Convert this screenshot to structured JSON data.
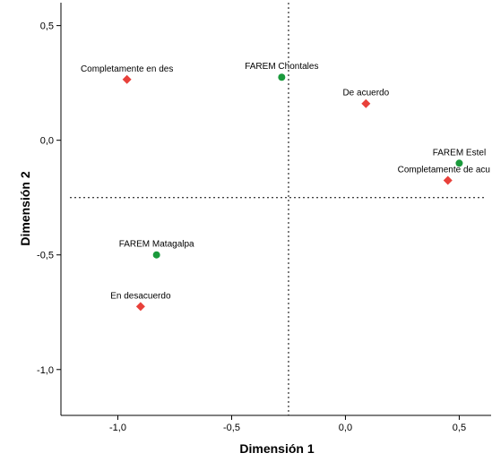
{
  "chart_data": {
    "type": "scatter",
    "xlabel": "Dimensión 1",
    "ylabel": "Dimensión 2",
    "xlim": [
      -1.25,
      0.64
    ],
    "ylim": [
      -1.2,
      0.6
    ],
    "xticks": [
      -1.0,
      -0.5,
      0.0,
      0.5
    ],
    "yticks": [
      -1.0,
      -0.5,
      0.0,
      0.5
    ],
    "xtick_labels": [
      "-1,0",
      "-0,5",
      "0,0",
      "0,5"
    ],
    "ytick_labels": [
      "-1,0",
      "-0,5",
      "0,0",
      "0,5"
    ],
    "reference_lines": {
      "x": -0.25,
      "y": -0.25,
      "style": "dotted"
    },
    "grid": false,
    "series": [
      {
        "marker": "circle",
        "color": "#1a9a3c",
        "points": [
          {
            "label": "FAREM Chontales",
            "x": -0.28,
            "y": 0.275
          },
          {
            "label": "FAREM Estel",
            "x": 0.5,
            "y": -0.1
          },
          {
            "label": "FAREM Matagalpa",
            "x": -0.83,
            "y": -0.5
          }
        ]
      },
      {
        "marker": "diamond",
        "color": "#e8403a",
        "points": [
          {
            "label": "Completamente en des",
            "x": -0.96,
            "y": 0.265
          },
          {
            "label": "De acuerdo",
            "x": 0.09,
            "y": 0.16
          },
          {
            "label": "Completamente de acu",
            "x": 0.45,
            "y": -0.175
          },
          {
            "label": "En desacuerdo",
            "x": -0.9,
            "y": -0.725
          }
        ]
      }
    ]
  }
}
